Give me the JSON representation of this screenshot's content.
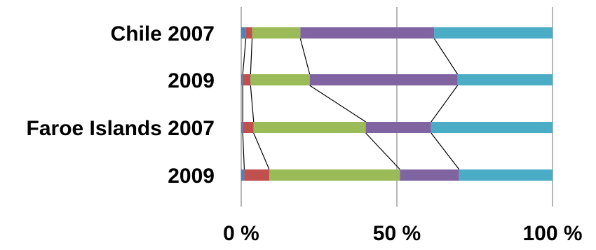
{
  "chart_data": {
    "type": "bar",
    "orientation": "horizontal",
    "stacking": "percent",
    "series_lines": true,
    "categories": [
      "Chile 2007",
      "2009",
      "Faroe Islands 2007",
      "2009"
    ],
    "series": [
      {
        "color": "#4F81BD",
        "values": [
          1.5,
          0.5,
          0.5,
          1.0
        ]
      },
      {
        "color": "#C0504D",
        "values": [
          2.0,
          2.5,
          3.5,
          8.0
        ]
      },
      {
        "color": "#9BBB59",
        "values": [
          15.5,
          19.0,
          36.0,
          42.0
        ]
      },
      {
        "color": "#8064A2",
        "values": [
          43.0,
          47.5,
          21.0,
          19.0
        ]
      },
      {
        "color": "#4BACC6",
        "values": [
          38.0,
          30.5,
          39.0,
          30.0
        ]
      }
    ],
    "x_ticks": [
      "0 %",
      "50 %",
      "100 %"
    ],
    "x_tick_values": [
      0,
      50,
      100
    ],
    "xlim": [
      0,
      100
    ],
    "grid": true,
    "legend": "none"
  }
}
